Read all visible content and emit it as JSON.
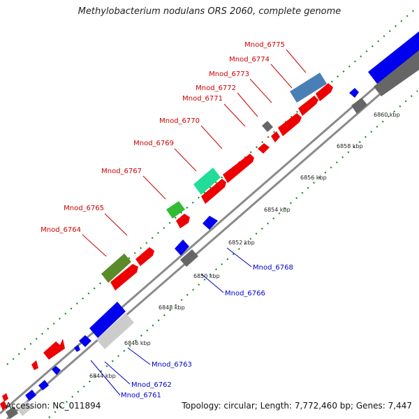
{
  "title": "Methylobacterium nodulans ORS 2060, complete genome",
  "footer": {
    "accession": "Accession: NC_011894",
    "summary": "Topology: circular; Length: 7,772,460 bp; Genes: 7,447"
  },
  "colors": {
    "backbone": "#8a8a8a",
    "tick_dots": "#1a8a1a",
    "forward_label": "#cc0000",
    "reverse_label": "#0000cc",
    "gene_red": "#ee0000",
    "gene_blue": "#0000ee",
    "gene_gray": "#666666",
    "gene_lightgray": "#cccccc",
    "gene_steelblue": "#4a7fb5",
    "gene_olive": "#5a8a2a",
    "gene_green": "#33bb33",
    "gene_teal": "#22dd99"
  },
  "ticks": [
    "6844 kbp",
    "6846 kbp",
    "6848 kbp",
    "6850 kbp",
    "6852 kbp",
    "6854 kbp",
    "6856 kbp",
    "6858 kbp",
    "6860 kbp"
  ],
  "forward_labels": [
    "Mnod_6764",
    "Mnod_6765",
    "Mnod_6767",
    "Mnod_6769",
    "Mnod_6770",
    "Mnod_6771",
    "Mnod_6772",
    "Mnod_6773",
    "Mnod_6774",
    "Mnod_6775"
  ],
  "reverse_labels": [
    "Mnod_6761",
    "Mnod_6762",
    "Mnod_6763",
    "Mnod_6766",
    "Mnod_6768"
  ]
}
